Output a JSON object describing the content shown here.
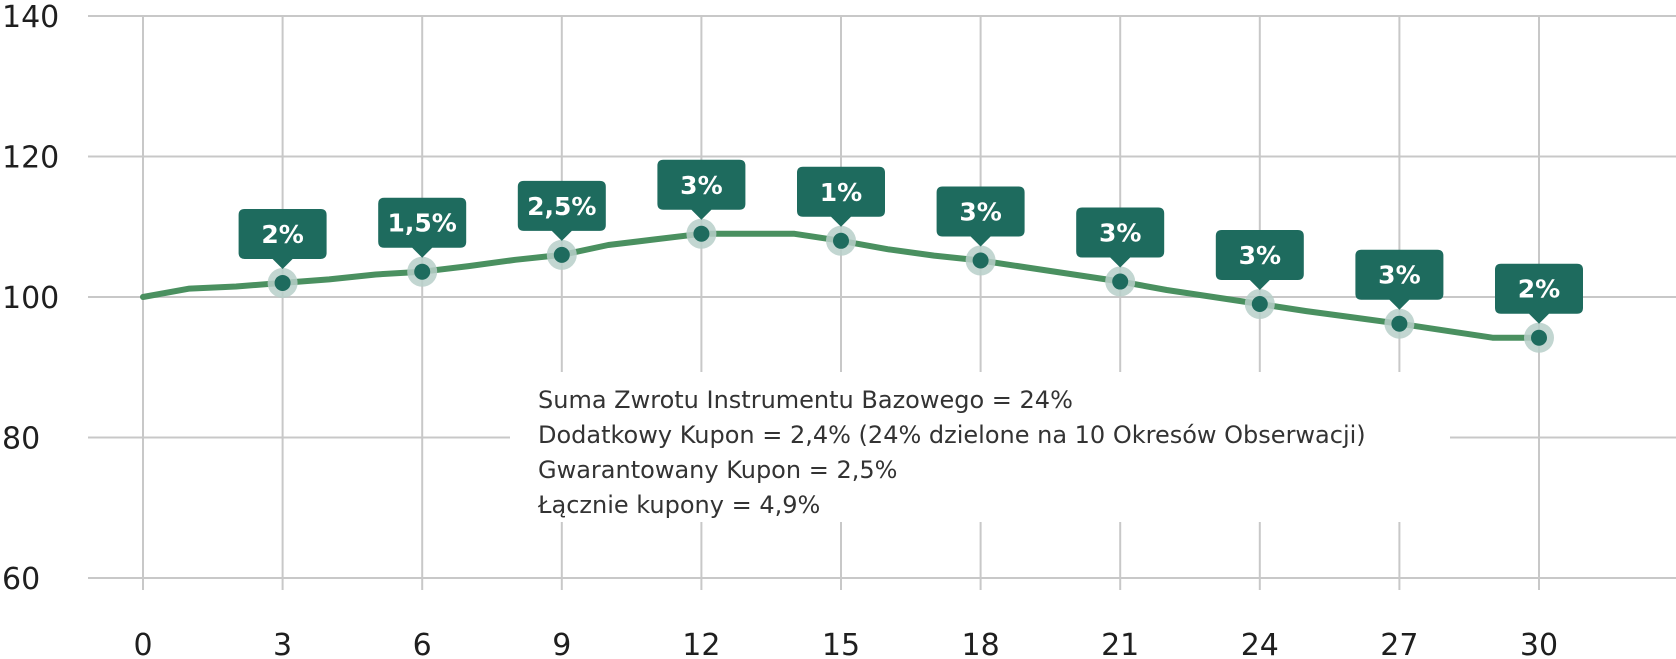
{
  "chart_data": {
    "type": "line",
    "title": "",
    "xlabel": "",
    "ylabel": "",
    "xlim": [
      0,
      30
    ],
    "ylim": [
      60,
      140
    ],
    "x_ticks": [
      0,
      3,
      6,
      9,
      12,
      15,
      18,
      21,
      24,
      27,
      30
    ],
    "y_ticks": [
      60,
      80,
      100,
      120,
      140
    ],
    "grid": true,
    "legend": "none",
    "series": [
      {
        "color": "#4a9060",
        "x": [
          0,
          1,
          2,
          3,
          4,
          5,
          6,
          7,
          8,
          9,
          10,
          11,
          12,
          13,
          14,
          15,
          16,
          17,
          18,
          19,
          20,
          21,
          22,
          23,
          24,
          25,
          26,
          27,
          28,
          29,
          30
        ],
        "y": [
          100,
          101.2,
          101.5,
          102,
          102.5,
          103.2,
          103.6,
          104.4,
          105.3,
          106,
          107.4,
          108.2,
          109,
          109,
          109,
          108,
          106.8,
          105.9,
          105.2,
          104.2,
          103.2,
          102.2,
          101,
          100,
          99,
          98,
          97.1,
          96.2,
          95.2,
          94.2,
          94.2
        ]
      }
    ],
    "observation_points": [
      {
        "x": 3,
        "y": 102,
        "label": "2%"
      },
      {
        "x": 6,
        "y": 103.6,
        "label": "1,5%"
      },
      {
        "x": 9,
        "y": 106,
        "label": "2,5%"
      },
      {
        "x": 12,
        "y": 109,
        "label": "3%"
      },
      {
        "x": 15,
        "y": 108,
        "label": "1%"
      },
      {
        "x": 18,
        "y": 105.2,
        "label": "3%"
      },
      {
        "x": 21,
        "y": 102.2,
        "label": "3%"
      },
      {
        "x": 24,
        "y": 99,
        "label": "3%"
      },
      {
        "x": 27,
        "y": 96.2,
        "label": "3%"
      },
      {
        "x": 30,
        "y": 94.2,
        "label": "2%"
      }
    ],
    "annotation": [
      "Suma Zwrotu Instrumentu Bazowego = 24%",
      "Dodatkowy Kupon = 2,4% (24% dzielone na 10 Okresów Obserwacji)",
      "Gwarantowany Kupon = 2,5%",
      "Łącznie kupony = 4,9%"
    ],
    "colors": {
      "line": "#4a9060",
      "marker": "#1e6b5e",
      "marker_halo": "#b7cfc9",
      "badge": "#1e6b5e",
      "grid": "#c8c8c8"
    }
  }
}
